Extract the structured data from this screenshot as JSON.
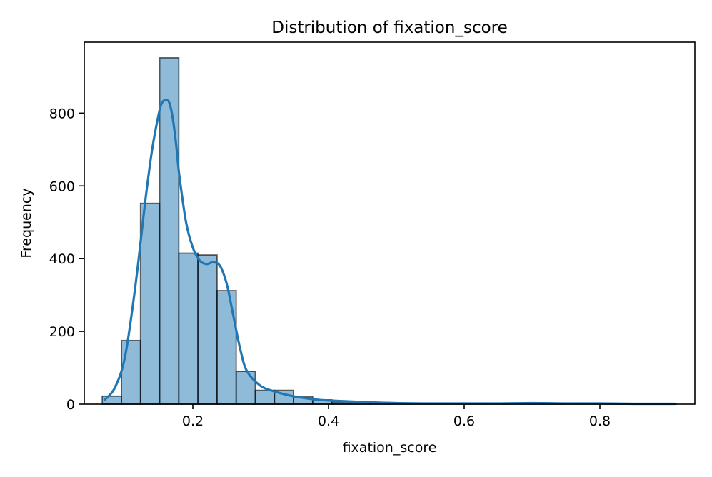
{
  "chart_data": {
    "type": "bar",
    "title": "Distribution of fixation_score",
    "xlabel": "fixation_score",
    "ylabel": "Frequency",
    "xlim": [
      0.04,
      0.94
    ],
    "ylim": [
      0,
      995
    ],
    "xticks": [
      0.2,
      0.4,
      0.6,
      0.8
    ],
    "xtick_labels": [
      "0.2",
      "0.4",
      "0.6",
      "0.8"
    ],
    "yticks": [
      0,
      200,
      400,
      600,
      800
    ],
    "ytick_labels": [
      "0",
      "200",
      "400",
      "600",
      "800"
    ],
    "grid": false,
    "bar_color": "#1f77b4",
    "bar_opacity": 0.5,
    "bar_edge_color": "#000000",
    "kde_color": "#1f77b4",
    "histogram": {
      "bin_start": 0.0665,
      "bin_width": 0.0282,
      "counts": [
        22,
        175,
        552,
        952,
        415,
        410,
        312,
        90,
        38,
        38,
        20,
        12,
        6,
        4,
        3,
        2,
        1,
        1,
        1,
        1,
        1,
        1,
        1,
        1,
        1,
        1,
        1,
        1,
        1,
        1
      ]
    },
    "kde": {
      "x": [
        0.07,
        0.085,
        0.1,
        0.115,
        0.13,
        0.14,
        0.15,
        0.155,
        0.16,
        0.165,
        0.17,
        0.175,
        0.18,
        0.19,
        0.2,
        0.21,
        0.22,
        0.23,
        0.24,
        0.25,
        0.26,
        0.27,
        0.28,
        0.3,
        0.32,
        0.34,
        0.36,
        0.38,
        0.4,
        0.45,
        0.5,
        0.55,
        0.6,
        0.65,
        0.7,
        0.75,
        0.8,
        0.85,
        0.91
      ],
      "y": [
        12,
        45,
        130,
        320,
        560,
        700,
        800,
        830,
        835,
        830,
        790,
        720,
        630,
        500,
        430,
        395,
        385,
        390,
        380,
        330,
        240,
        150,
        90,
        50,
        35,
        25,
        18,
        13,
        10,
        6,
        3,
        2,
        2,
        2,
        3,
        2,
        2,
        1,
        1
      ]
    }
  }
}
